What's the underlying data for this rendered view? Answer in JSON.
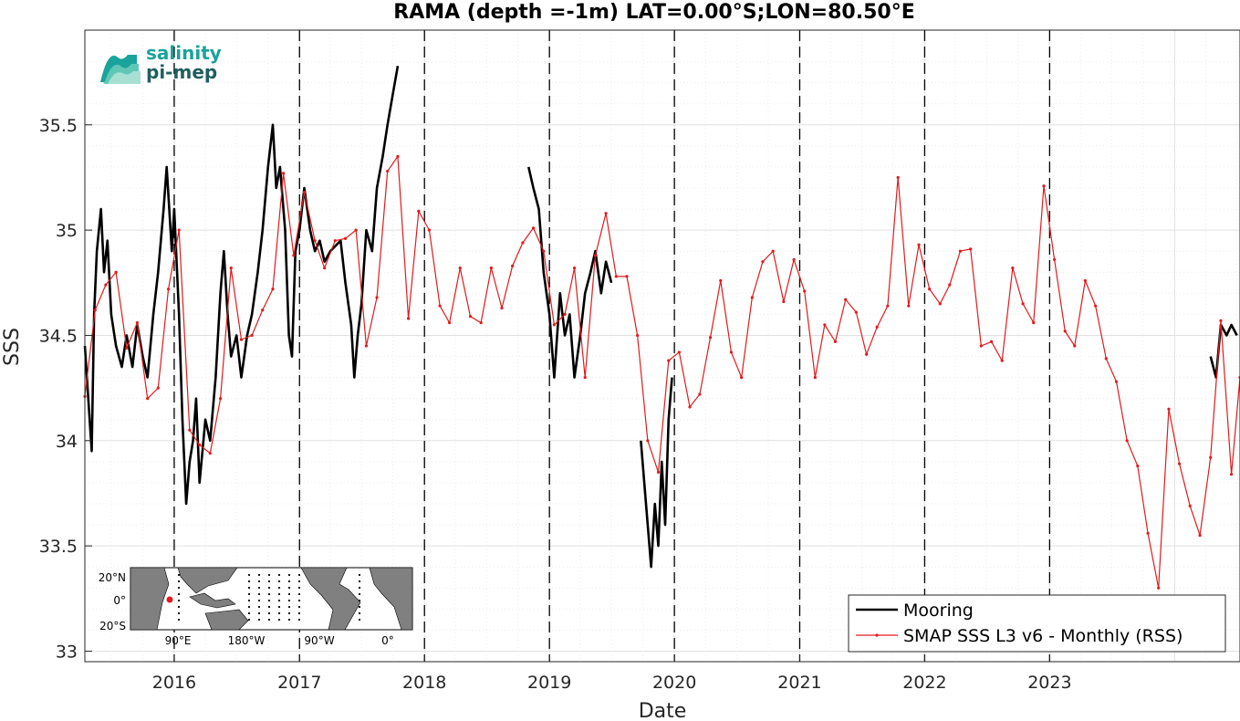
{
  "chart_data": {
    "type": "line",
    "title": "RAMA (depth =-1m) LAT=0.00°S;LON=80.50°E",
    "xlabel": "Date",
    "ylabel": "SSS",
    "xlim": [
      "2015-04-15",
      "2024-07-10"
    ],
    "ylim": [
      32.95,
      35.95
    ],
    "y_ticks": [
      "33",
      "33.5",
      "34",
      "34.5",
      "35",
      "35.5"
    ],
    "x_ticks": [
      "2016",
      "2017",
      "2018",
      "2019",
      "2020",
      "2021",
      "2022",
      "2023"
    ],
    "grid": true,
    "year_boundaries_dashed": true,
    "legend": {
      "placement": "bottom-right",
      "entries": [
        "Mooring",
        "SMAP SSS L3 v6 - Monthly (RSS)"
      ]
    },
    "colors": {
      "mooring": "#000000",
      "smap": "#e31a1c"
    },
    "series": [
      {
        "name": "Mooring",
        "segments": [
          [
            [
              "2015-04-15",
              34.45
            ],
            [
              "2015-04-25",
              34.2
            ],
            [
              "2015-05-05",
              33.95
            ],
            [
              "2015-05-12",
              34.6
            ],
            [
              "2015-05-20",
              34.9
            ],
            [
              "2015-06-01",
              35.1
            ],
            [
              "2015-06-10",
              34.8
            ],
            [
              "2015-06-20",
              34.95
            ],
            [
              "2015-07-01",
              34.6
            ],
            [
              "2015-07-15",
              34.45
            ],
            [
              "2015-08-01",
              34.35
            ],
            [
              "2015-08-15",
              34.5
            ],
            [
              "2015-09-01",
              34.35
            ],
            [
              "2015-09-15",
              34.55
            ],
            [
              "2015-10-01",
              34.4
            ],
            [
              "2015-10-15",
              34.3
            ],
            [
              "2015-11-01",
              34.6
            ],
            [
              "2015-11-15",
              34.8
            ],
            [
              "2015-12-01",
              35.1
            ],
            [
              "2015-12-10",
              35.3
            ],
            [
              "2015-12-25",
              34.9
            ],
            [
              "2016-01-01",
              35.1
            ],
            [
              "2016-01-15",
              34.6
            ],
            [
              "2016-01-25",
              34.1
            ],
            [
              "2016-02-05",
              33.7
            ],
            [
              "2016-02-15",
              33.9
            ],
            [
              "2016-02-25",
              34.0
            ],
            [
              "2016-03-05",
              34.2
            ],
            [
              "2016-03-15",
              33.8
            ],
            [
              "2016-04-01",
              34.1
            ],
            [
              "2016-04-15",
              34.0
            ],
            [
              "2016-05-01",
              34.3
            ],
            [
              "2016-05-15",
              34.7
            ],
            [
              "2016-05-25",
              34.9
            ],
            [
              "2016-06-05",
              34.6
            ],
            [
              "2016-06-15",
              34.4
            ],
            [
              "2016-07-01",
              34.5
            ],
            [
              "2016-07-15",
              34.3
            ],
            [
              "2016-08-01",
              34.5
            ],
            [
              "2016-08-15",
              34.6
            ],
            [
              "2016-09-01",
              34.8
            ],
            [
              "2016-09-15",
              35.0
            ],
            [
              "2016-10-01",
              35.3
            ],
            [
              "2016-10-15",
              35.5
            ],
            [
              "2016-10-25",
              35.2
            ],
            [
              "2016-11-05",
              35.3
            ],
            [
              "2016-11-20",
              35.0
            ],
            [
              "2016-12-01",
              34.5
            ],
            [
              "2016-12-10",
              34.4
            ],
            [
              "2016-12-20",
              34.9
            ],
            [
              "2017-01-01",
              35.0
            ],
            [
              "2017-01-15",
              35.2
            ],
            [
              "2017-02-01",
              35.0
            ],
            [
              "2017-02-15",
              34.9
            ],
            [
              "2017-03-01",
              34.95
            ],
            [
              "2017-03-15",
              34.85
            ],
            [
              "2017-04-01",
              34.9
            ],
            [
              "2017-05-01",
              34.95
            ],
            [
              "2017-05-15",
              34.75
            ],
            [
              "2017-06-01",
              34.55
            ],
            [
              "2017-06-10",
              34.3
            ],
            [
              "2017-06-20",
              34.5
            ],
            [
              "2017-07-01",
              34.65
            ],
            [
              "2017-07-15",
              35.0
            ],
            [
              "2017-08-01",
              34.9
            ],
            [
              "2017-08-15",
              35.2
            ],
            [
              "2017-09-01",
              35.35
            ],
            [
              "2017-09-15",
              35.5
            ],
            [
              "2017-10-01",
              35.65
            ],
            [
              "2017-10-15",
              35.78
            ]
          ],
          [
            [
              "2018-11-01",
              35.3
            ],
            [
              "2018-11-15",
              35.2
            ],
            [
              "2018-12-01",
              35.1
            ],
            [
              "2018-12-15",
              34.8
            ],
            [
              "2019-01-01",
              34.6
            ],
            [
              "2019-01-15",
              34.3
            ],
            [
              "2019-02-01",
              34.7
            ],
            [
              "2019-02-15",
              34.5
            ],
            [
              "2019-03-01",
              34.6
            ],
            [
              "2019-03-15",
              34.3
            ],
            [
              "2019-04-01",
              34.5
            ],
            [
              "2019-04-15",
              34.7
            ],
            [
              "2019-05-01",
              34.8
            ],
            [
              "2019-05-15",
              34.9
            ],
            [
              "2019-06-01",
              34.7
            ],
            [
              "2019-06-15",
              34.85
            ],
            [
              "2019-07-01",
              34.75
            ]
          ],
          [
            [
              "2019-09-25",
              34.0
            ],
            [
              "2019-10-05",
              33.8
            ],
            [
              "2019-10-15",
              33.6
            ],
            [
              "2019-10-25",
              33.4
            ],
            [
              "2019-11-05",
              33.7
            ],
            [
              "2019-11-15",
              33.5
            ],
            [
              "2019-11-25",
              33.9
            ],
            [
              "2019-12-05",
              33.6
            ],
            [
              "2019-12-15",
              34.1
            ],
            [
              "2019-12-25",
              34.3
            ]
          ],
          [
            [
              "2024-04-15",
              34.4
            ],
            [
              "2024-05-01",
              34.3
            ],
            [
              "2024-05-15",
              34.55
            ],
            [
              "2024-06-01",
              34.5
            ],
            [
              "2024-06-15",
              34.55
            ],
            [
              "2024-07-01",
              34.5
            ]
          ]
        ]
      },
      {
        "name": "SMAP SSS L3 v6 - Monthly (RSS)",
        "points": [
          [
            "2015-04-15",
            34.21
          ],
          [
            "2015-05-15",
            34.62
          ],
          [
            "2015-06-15",
            34.74
          ],
          [
            "2015-07-15",
            34.8
          ],
          [
            "2015-08-15",
            34.44
          ],
          [
            "2015-09-15",
            34.56
          ],
          [
            "2015-10-15",
            34.2
          ],
          [
            "2015-11-15",
            34.25
          ],
          [
            "2015-12-15",
            34.72
          ],
          [
            "2016-01-15",
            35.0
          ],
          [
            "2016-02-15",
            34.05
          ],
          [
            "2016-03-15",
            33.98
          ],
          [
            "2016-04-15",
            33.94
          ],
          [
            "2016-05-15",
            34.2
          ],
          [
            "2016-06-15",
            34.82
          ],
          [
            "2016-07-15",
            34.48
          ],
          [
            "2016-08-15",
            34.5
          ],
          [
            "2016-09-15",
            34.62
          ],
          [
            "2016-10-15",
            34.72
          ],
          [
            "2016-11-15",
            35.27
          ],
          [
            "2016-12-15",
            34.88
          ],
          [
            "2017-01-15",
            35.18
          ],
          [
            "2017-02-15",
            34.95
          ],
          [
            "2017-03-15",
            34.82
          ],
          [
            "2017-04-15",
            34.95
          ],
          [
            "2017-05-15",
            34.96
          ],
          [
            "2017-06-15",
            35.0
          ],
          [
            "2017-07-15",
            34.45
          ],
          [
            "2017-08-15",
            34.68
          ],
          [
            "2017-09-15",
            35.28
          ],
          [
            "2017-10-15",
            35.35
          ],
          [
            "2017-11-15",
            34.58
          ],
          [
            "2017-12-15",
            35.09
          ],
          [
            "2018-01-15",
            35.0
          ],
          [
            "2018-02-15",
            34.64
          ],
          [
            "2018-03-15",
            34.56
          ],
          [
            "2018-04-15",
            34.82
          ],
          [
            "2018-05-15",
            34.59
          ],
          [
            "2018-06-15",
            34.56
          ],
          [
            "2018-07-15",
            34.82
          ],
          [
            "2018-08-15",
            34.63
          ],
          [
            "2018-09-15",
            34.83
          ],
          [
            "2018-10-15",
            34.94
          ],
          [
            "2018-11-15",
            35.01
          ],
          [
            "2018-12-15",
            34.9
          ],
          [
            "2019-01-15",
            34.55
          ],
          [
            "2019-02-15",
            34.6
          ],
          [
            "2019-03-15",
            34.82
          ],
          [
            "2019-04-15",
            34.3
          ],
          [
            "2019-05-15",
            34.88
          ],
          [
            "2019-06-15",
            35.08
          ],
          [
            "2019-07-15",
            34.78
          ],
          [
            "2019-08-15",
            34.78
          ],
          [
            "2019-09-15",
            34.5
          ],
          [
            "2019-10-15",
            34.0
          ],
          [
            "2019-11-15",
            33.85
          ],
          [
            "2019-12-15",
            34.38
          ],
          [
            "2020-01-15",
            34.42
          ],
          [
            "2020-02-15",
            34.16
          ],
          [
            "2020-03-15",
            34.22
          ],
          [
            "2020-04-15",
            34.49
          ],
          [
            "2020-05-15",
            34.76
          ],
          [
            "2020-06-15",
            34.42
          ],
          [
            "2020-07-15",
            34.3
          ],
          [
            "2020-08-15",
            34.68
          ],
          [
            "2020-09-15",
            34.85
          ],
          [
            "2020-10-15",
            34.9
          ],
          [
            "2020-11-15",
            34.66
          ],
          [
            "2020-12-15",
            34.86
          ],
          [
            "2021-01-15",
            34.71
          ],
          [
            "2021-02-15",
            34.3
          ],
          [
            "2021-03-15",
            34.55
          ],
          [
            "2021-04-15",
            34.47
          ],
          [
            "2021-05-15",
            34.67
          ],
          [
            "2021-06-15",
            34.61
          ],
          [
            "2021-07-15",
            34.41
          ],
          [
            "2021-08-15",
            34.54
          ],
          [
            "2021-09-15",
            34.64
          ],
          [
            "2021-10-15",
            35.25
          ],
          [
            "2021-11-15",
            34.64
          ],
          [
            "2021-12-15",
            34.93
          ],
          [
            "2022-01-15",
            34.72
          ],
          [
            "2022-02-15",
            34.65
          ],
          [
            "2022-03-15",
            34.74
          ],
          [
            "2022-04-15",
            34.9
          ],
          [
            "2022-05-15",
            34.91
          ],
          [
            "2022-06-15",
            34.45
          ],
          [
            "2022-07-15",
            34.47
          ],
          [
            "2022-08-15",
            34.38
          ],
          [
            "2022-09-15",
            34.82
          ],
          [
            "2022-10-15",
            34.65
          ],
          [
            "2022-11-15",
            34.56
          ],
          [
            "2022-12-15",
            35.21
          ],
          [
            "2023-01-15",
            34.86
          ],
          [
            "2023-02-15",
            34.52
          ],
          [
            "2023-03-15",
            34.45
          ],
          [
            "2023-04-15",
            34.76
          ],
          [
            "2023-05-15",
            34.64
          ],
          [
            "2023-06-15",
            34.39
          ],
          [
            "2023-07-15",
            34.28
          ],
          [
            "2023-08-15",
            34.0
          ],
          [
            "2023-09-15",
            33.88
          ],
          [
            "2023-10-15",
            33.56
          ],
          [
            "2023-11-15",
            33.3
          ],
          [
            "2023-12-15",
            34.15
          ],
          [
            "2024-01-15",
            33.89
          ],
          [
            "2024-02-15",
            33.69
          ],
          [
            "2024-03-15",
            33.55
          ],
          [
            "2024-04-15",
            33.92
          ],
          [
            "2024-05-15",
            34.57
          ],
          [
            "2024-06-15",
            33.84
          ],
          [
            "2024-07-10",
            34.3
          ]
        ]
      }
    ]
  },
  "logo": {
    "line1": "salinity",
    "line2": "pi-mep"
  },
  "inset_map": {
    "lat_labels": [
      "20°N",
      "0°",
      "20°S"
    ],
    "lon_labels": [
      "90°E",
      "180°W",
      "90°W",
      "0°"
    ],
    "marker_color": "#e31a1c",
    "land_color": "#808080"
  }
}
